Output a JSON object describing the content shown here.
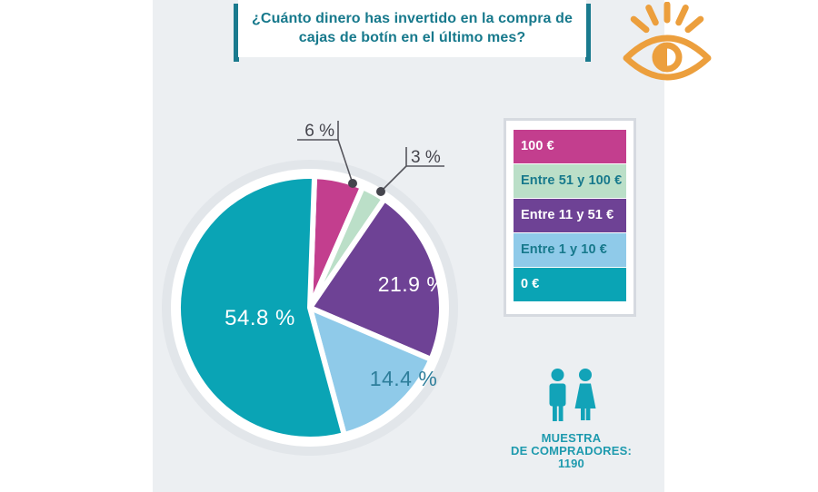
{
  "page": {
    "outer_bg": "#FFFFFF",
    "panel_bg": "#ECEFF2"
  },
  "title": {
    "text": "¿Cuánto dinero has invertido en la compra de cajas de botín en el último mes?",
    "color": "#17798C",
    "accent_color": "#1A7A8E"
  },
  "eye_icon_color": "#EC9F3D",
  "chart_data": {
    "type": "pie",
    "title": "¿Cuánto dinero has invertido en la compra de cajas de botín en el último mes?",
    "direction": "clockwise",
    "start_angle_deg": 2,
    "total": 100.1,
    "segments": [
      {
        "label": "100 €",
        "value": 6,
        "display": "6 %",
        "color": "#C33E8E",
        "label_placement": "outside",
        "label_color": "#45454D"
      },
      {
        "label": "Entre 51 y 100 €",
        "value": 3,
        "display": "3 %",
        "color": "#BBDFC8",
        "label_placement": "outside",
        "label_color": "#45454D"
      },
      {
        "label": "Entre 11 y 51 €",
        "value": 21.9,
        "display": "21.9 %",
        "color": "#6E4295",
        "label_placement": "inside",
        "label_color": "#FFFFFF"
      },
      {
        "label": "Entre 1 y 10 €",
        "value": 14.4,
        "display": "14.4 %",
        "color": "#8FCAE9",
        "label_placement": "inside",
        "label_color": "#2E7E9B"
      },
      {
        "label": "0 €",
        "value": 54.8,
        "display": "54.8 %",
        "color": "#0AA4B5",
        "label_placement": "inside",
        "label_color": "#FFFFFF"
      }
    ],
    "ring_color": "#E2E6EA",
    "gap_color": "#FFFFFF",
    "leader_line_color": "#55555C"
  },
  "legend": {
    "items": [
      {
        "label": "100 €",
        "bg": "#C33E8E",
        "text": "#FFFFFF"
      },
      {
        "label": "Entre 51 y 100 €",
        "bg": "#BBDFC8",
        "text": "#17798C"
      },
      {
        "label": "Entre 11 y 51 €",
        "bg": "#6E4295",
        "text": "#FFFFFF"
      },
      {
        "label": "Entre 1 y 10 €",
        "bg": "#8FCAE9",
        "text": "#17798C"
      },
      {
        "label": "0 €",
        "bg": "#0AA4B5",
        "text": "#FFFFFF"
      }
    ]
  },
  "sample": {
    "lines": "MUESTRA\nDE COMPRADORES:\n1190",
    "color": "#1E9AAE",
    "icon_color": "#12A3B8"
  }
}
